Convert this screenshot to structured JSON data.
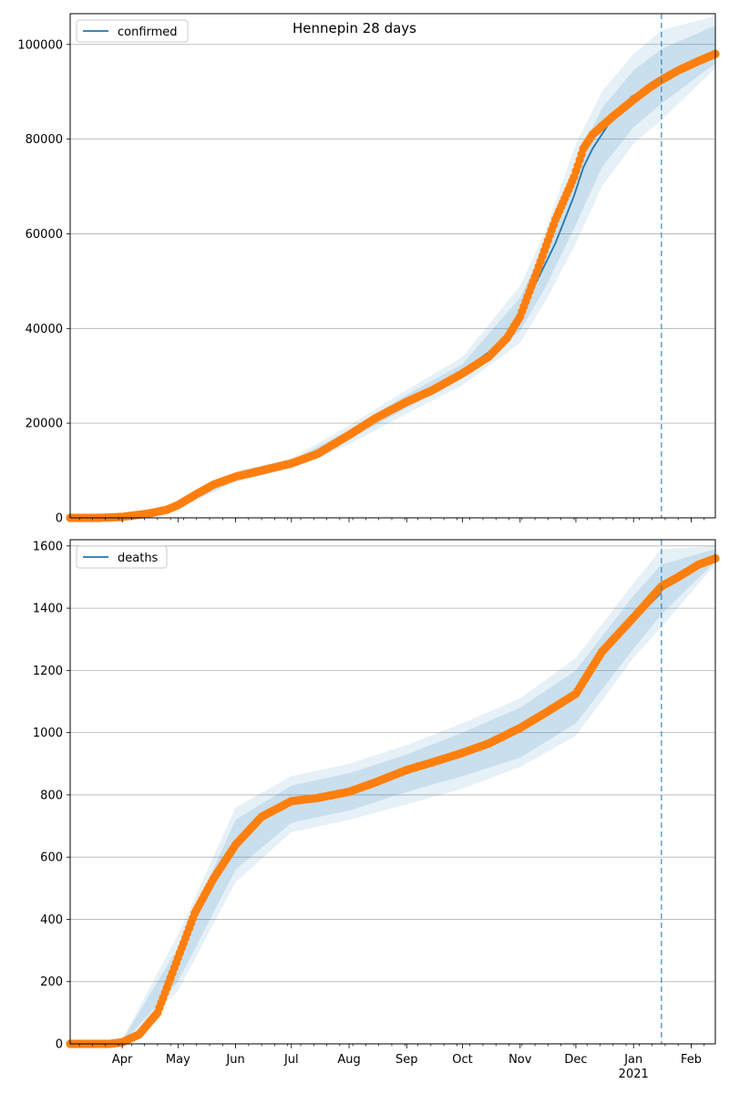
{
  "chart_data": [
    {
      "type": "line",
      "title": "Hennepin 28 days",
      "legend": {
        "label": "confirmed",
        "placement": "top-left"
      },
      "grid": "horizontal",
      "ylim": [
        0,
        106500
      ],
      "yticks": [
        0,
        20000,
        40000,
        60000,
        80000,
        100000
      ],
      "ytick_labels": [
        "0",
        "20000",
        "40000",
        "60000",
        "80000",
        "100000"
      ],
      "xlim": [
        "2020-03-04",
        "2021-02-14"
      ],
      "forecast_start": "2021-01-16",
      "colors": {
        "model": "#1f77b4",
        "observed": "#ff7f0e",
        "band": "#1f77b4"
      },
      "series": [
        {
          "name": "confirmed",
          "kind": "model",
          "x": [
            "2020-03-04",
            "2020-03-20",
            "2020-04-01",
            "2020-04-15",
            "2020-04-25",
            "2020-05-01",
            "2020-05-10",
            "2020-05-20",
            "2020-06-01",
            "2020-06-15",
            "2020-07-01",
            "2020-07-15",
            "2020-08-01",
            "2020-08-15",
            "2020-09-01",
            "2020-09-15",
            "2020-10-01",
            "2020-10-15",
            "2020-10-25",
            "2020-11-01",
            "2020-11-10",
            "2020-11-20",
            "2020-11-30",
            "2020-12-05",
            "2020-12-10",
            "2020-12-20",
            "2020-12-31",
            "2021-01-10",
            "2021-01-16"
          ],
          "values": [
            0,
            0,
            200,
            800,
            1600,
            2500,
            4500,
            6800,
            8600,
            10000,
            11500,
            13500,
            17500,
            21000,
            24500,
            27500,
            31000,
            35000,
            38500,
            43000,
            50000,
            58000,
            68000,
            74000,
            78000,
            84000,
            89000,
            91000,
            92500
          ]
        },
        {
          "name": "",
          "kind": "observed",
          "x": [
            "2020-03-04",
            "2020-03-20",
            "2020-04-01",
            "2020-04-15",
            "2020-04-25",
            "2020-05-01",
            "2020-05-10",
            "2020-05-20",
            "2020-06-01",
            "2020-06-15",
            "2020-07-01",
            "2020-07-15",
            "2020-08-01",
            "2020-08-15",
            "2020-09-01",
            "2020-09-15",
            "2020-10-01",
            "2020-10-15",
            "2020-10-25",
            "2020-11-01",
            "2020-11-10",
            "2020-11-20",
            "2020-11-30",
            "2020-12-05",
            "2020-12-10",
            "2020-12-20",
            "2020-12-31",
            "2021-01-10",
            "2021-01-16",
            "2021-01-25",
            "2021-02-05",
            "2021-02-14"
          ],
          "values": [
            0,
            0,
            200,
            900,
            1700,
            2700,
            4800,
            7000,
            8700,
            10000,
            11500,
            13500,
            17500,
            21000,
            24500,
            27000,
            30500,
            34000,
            38000,
            42500,
            52000,
            63000,
            72000,
            78000,
            81000,
            84500,
            88000,
            91000,
            92500,
            94500,
            96500,
            98000
          ]
        }
      ],
      "bands": [
        {
          "x": [
            "2020-03-04",
            "2020-04-01",
            "2020-05-01",
            "2020-06-01",
            "2020-07-01",
            "2020-08-01",
            "2020-09-01",
            "2020-10-01",
            "2020-11-01",
            "2020-11-15",
            "2020-12-01",
            "2020-12-15",
            "2021-01-01",
            "2021-01-16",
            "2021-02-14"
          ],
          "lower": [
            0,
            100,
            2000,
            7500,
            10500,
            15500,
            22000,
            28000,
            37000,
            46000,
            58000,
            70000,
            79000,
            84000,
            95000
          ],
          "upper": [
            0,
            300,
            3100,
            9800,
            12600,
            19500,
            27000,
            34000,
            49000,
            61000,
            79000,
            90000,
            98000,
            103000,
            106000
          ]
        },
        {
          "x": [
            "2020-03-04",
            "2020-04-01",
            "2020-05-01",
            "2020-06-01",
            "2020-07-01",
            "2020-08-01",
            "2020-09-01",
            "2020-10-01",
            "2020-11-01",
            "2020-11-15",
            "2020-12-01",
            "2020-12-15",
            "2021-01-01",
            "2021-01-16",
            "2021-02-14"
          ],
          "lower": [
            0,
            150,
            2200,
            8000,
            11000,
            16500,
            23200,
            29500,
            39500,
            49000,
            62000,
            74000,
            82500,
            87500,
            96000
          ],
          "upper": [
            0,
            250,
            2800,
            9300,
            12100,
            18500,
            26000,
            32500,
            46500,
            58000,
            75000,
            86500,
            94500,
            99000,
            104000
          ]
        }
      ]
    },
    {
      "type": "line",
      "title": "",
      "legend": {
        "label": "deaths",
        "placement": "top-left"
      },
      "grid": "horizontal",
      "ylim": [
        0,
        1620
      ],
      "yticks": [
        0,
        200,
        400,
        600,
        800,
        1000,
        1200,
        1400,
        1600
      ],
      "ytick_labels": [
        "0",
        "200",
        "400",
        "600",
        "800",
        "1000",
        "1200",
        "1400",
        "1600"
      ],
      "xlim": [
        "2020-03-04",
        "2021-02-14"
      ],
      "xticks": [
        "2020-04-01",
        "2020-05-01",
        "2020-06-01",
        "2020-07-01",
        "2020-08-01",
        "2020-09-01",
        "2020-10-01",
        "2020-11-01",
        "2020-12-01",
        "2021-01-01",
        "2021-02-01"
      ],
      "xtick_labels": [
        "Apr",
        "May",
        "Jun",
        "Jul",
        "Aug",
        "Sep",
        "Oct",
        "Nov",
        "Dec",
        "Jan",
        "Feb"
      ],
      "xtick_year_label": "2021",
      "forecast_start": "2021-01-16",
      "colors": {
        "model": "#1f77b4",
        "observed": "#ff7f0e",
        "band": "#1f77b4"
      },
      "series": [
        {
          "name": "deaths",
          "kind": "model",
          "x": [
            "2020-03-04",
            "2020-03-25",
            "2020-04-01",
            "2020-04-10",
            "2020-04-20",
            "2020-04-30",
            "2020-05-10",
            "2020-05-20",
            "2020-06-01",
            "2020-06-15",
            "2020-07-01",
            "2020-07-15",
            "2020-08-01",
            "2020-08-15",
            "2020-09-01",
            "2020-09-15",
            "2020-10-01",
            "2020-10-15",
            "2020-11-01",
            "2020-11-15",
            "2020-12-01",
            "2020-12-15",
            "2021-01-01",
            "2021-01-16"
          ],
          "values": [
            0,
            0,
            5,
            30,
            100,
            250,
            400,
            510,
            640,
            720,
            770,
            790,
            805,
            830,
            875,
            900,
            930,
            960,
            1010,
            1060,
            1130,
            1250,
            1360,
            1450
          ]
        },
        {
          "name": "",
          "kind": "observed",
          "x": [
            "2020-03-04",
            "2020-03-25",
            "2020-04-01",
            "2020-04-10",
            "2020-04-20",
            "2020-04-30",
            "2020-05-10",
            "2020-05-20",
            "2020-06-01",
            "2020-06-15",
            "2020-07-01",
            "2020-07-15",
            "2020-08-01",
            "2020-08-15",
            "2020-09-01",
            "2020-09-15",
            "2020-10-01",
            "2020-10-15",
            "2020-11-01",
            "2020-11-15",
            "2020-12-01",
            "2020-12-15",
            "2021-01-01",
            "2021-01-16",
            "2021-01-25",
            "2021-02-05",
            "2021-02-14"
          ],
          "values": [
            0,
            0,
            5,
            30,
            100,
            260,
            420,
            530,
            640,
            730,
            780,
            790,
            810,
            840,
            880,
            905,
            935,
            965,
            1015,
            1065,
            1125,
            1260,
            1370,
            1470,
            1500,
            1540,
            1560
          ]
        }
      ],
      "bands": [
        {
          "x": [
            "2020-03-04",
            "2020-04-01",
            "2020-05-01",
            "2020-06-01",
            "2020-07-01",
            "2020-08-01",
            "2020-09-01",
            "2020-10-01",
            "2020-11-01",
            "2020-12-01",
            "2021-01-01",
            "2021-01-16",
            "2021-02-14"
          ],
          "lower": [
            0,
            0,
            170,
            520,
            680,
            720,
            770,
            820,
            890,
            990,
            1240,
            1340,
            1540
          ],
          "upper": [
            0,
            15,
            350,
            760,
            860,
            900,
            960,
            1030,
            1110,
            1240,
            1480,
            1590,
            1600
          ]
        },
        {
          "x": [
            "2020-03-04",
            "2020-04-01",
            "2020-05-01",
            "2020-06-01",
            "2020-07-01",
            "2020-08-01",
            "2020-09-01",
            "2020-10-01",
            "2020-11-01",
            "2020-12-01",
            "2021-01-01",
            "2021-01-16",
            "2021-02-14"
          ],
          "lower": [
            0,
            0,
            200,
            560,
            710,
            750,
            810,
            860,
            920,
            1030,
            1270,
            1380,
            1550
          ],
          "upper": [
            0,
            10,
            310,
            720,
            830,
            870,
            930,
            1000,
            1080,
            1200,
            1440,
            1540,
            1590
          ]
        }
      ]
    }
  ]
}
